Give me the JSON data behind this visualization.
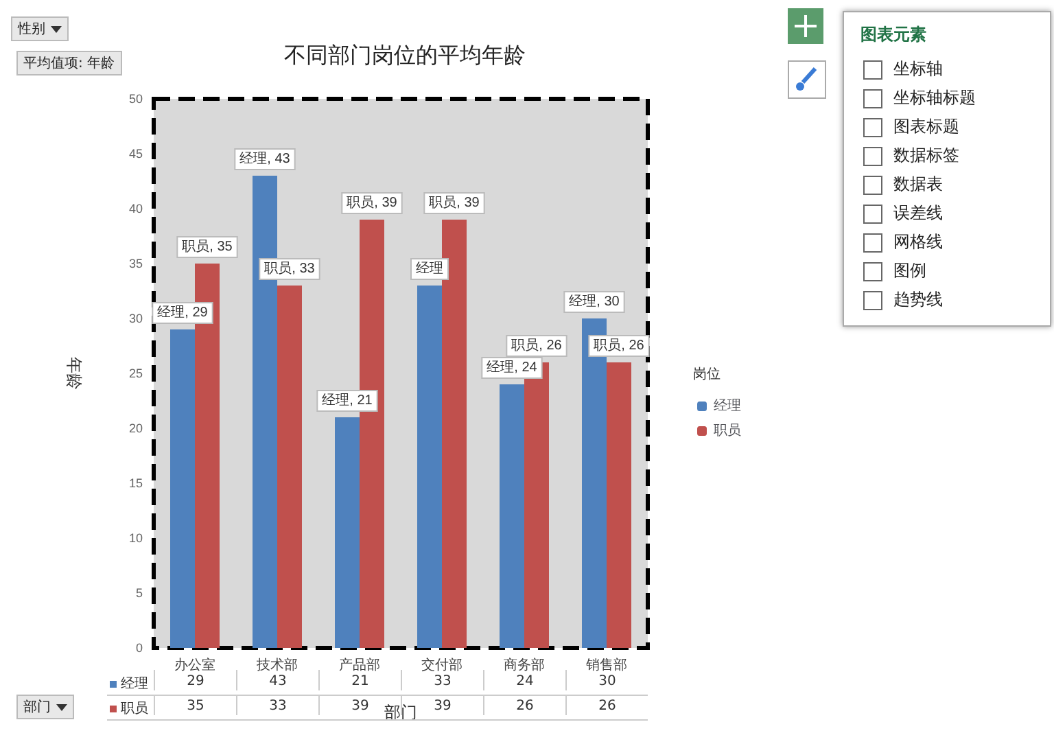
{
  "chart_data": [
    {
      "type": "bar",
      "title": "不同部门岗位的平均年龄",
      "xlabel": "部门",
      "ylabel": "年龄",
      "legend_title": "岗位",
      "legend": "right",
      "grid": false,
      "categories": [
        "办公室",
        "技术部",
        "产品部",
        "交付部",
        "商务部",
        "销售部"
      ],
      "ylim": [
        0,
        50
      ],
      "yticks": [
        0,
        5,
        10,
        15,
        20,
        25,
        30,
        35,
        40,
        45,
        50
      ],
      "series": [
        {
          "name": "经理",
          "color": "#4f81bd",
          "values": [
            29,
            43,
            21,
            33,
            24,
            30
          ],
          "value_labels": [
            "经理, 29",
            "经理, 43",
            "经理, 21",
            "经理",
            "经理, 24",
            "经理, 30"
          ]
        },
        {
          "name": "职员",
          "color": "#c0504d",
          "values": [
            35,
            33,
            39,
            39,
            26,
            26
          ],
          "value_labels": [
            "职员, 35",
            "职员, 33",
            "职员, 39",
            "职员, 39",
            "职员, 26",
            "职员, 26"
          ]
        }
      ],
      "annotations": [
        "性别",
        "平均值项: 年龄",
        "部门",
        "图表元素",
        "坐标轴",
        "坐标轴标题",
        "图表标题",
        "数据标签",
        "数据表",
        "误差线",
        "网格线",
        "图例",
        "趋势线"
      ]
    },
    {
      "type": "other",
      "series": [
        {
          "name": "经理",
          "color": "#4f81bd"
        },
        {
          "name": "职员",
          "color": "#c0504d"
        }
      ],
      "annotations": [
        "29",
        "43",
        "21",
        "33",
        "24",
        "30",
        "35",
        "33",
        "39",
        "39",
        "26",
        "26"
      ]
    }
  ]
}
